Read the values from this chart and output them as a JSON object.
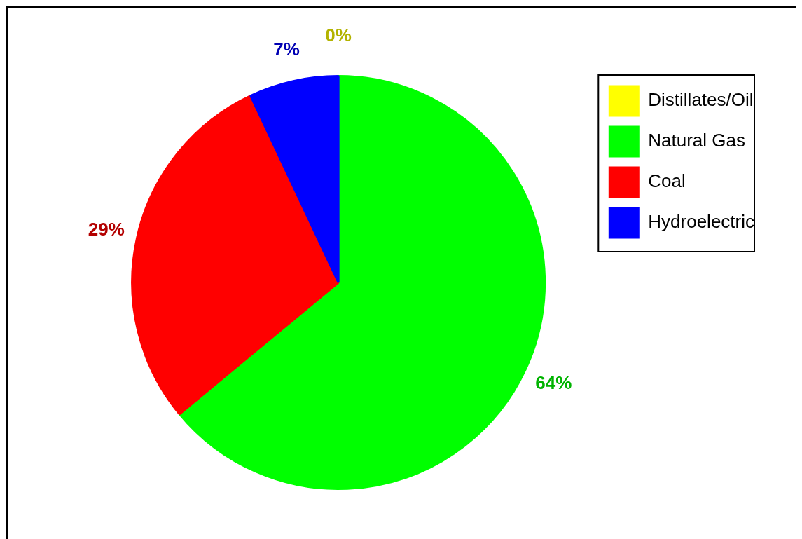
{
  "chart_data": {
    "type": "pie",
    "categories": [
      "Distillates/Oil",
      "Natural Gas",
      "Coal",
      "Hydroelectric"
    ],
    "values": [
      0,
      64,
      29,
      7
    ],
    "colors": [
      "#ffff00",
      "#00ff00",
      "#ff0000",
      "#0000ff"
    ],
    "value_labels": [
      "0%",
      "64%",
      "29%",
      "7%"
    ],
    "legend": "top right"
  }
}
